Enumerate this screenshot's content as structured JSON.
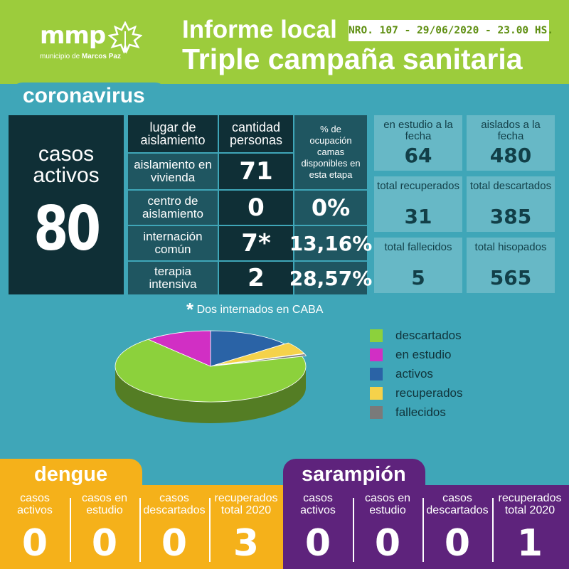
{
  "header": {
    "logo_mark": "mmp",
    "logo_sub_prefix": "municipio de ",
    "logo_sub_name": "Marcos Paz",
    "title_line1": "Informe local",
    "report_badge": "NRO. 107 - 29/06/2020 - 23.00 HS.",
    "title_line2": "Triple campaña sanitaria"
  },
  "coronavirus": {
    "title": "coronavirus",
    "active_label_1": "casos",
    "active_label_2": "activos",
    "active_value": "80",
    "table": {
      "col_place": "lugar de aislamiento",
      "col_count": "cantidad personas",
      "col_occupancy": "% de ocupación camas disponibles en esta etapa",
      "rows": [
        {
          "place": "aislamiento en vivienda",
          "count": "71",
          "occupancy": ""
        },
        {
          "place": "centro de aislamiento",
          "count": "0",
          "occupancy": "0%"
        },
        {
          "place": "internación común",
          "count": "7*",
          "occupancy": "13,16%"
        },
        {
          "place": "terapia intensiva",
          "count": "2",
          "occupancy": "28,57%"
        }
      ]
    },
    "stats": [
      {
        "label": "en estudio a la fecha",
        "value": "64"
      },
      {
        "label": "aislados a la fecha",
        "value": "480"
      },
      {
        "label": "total recuperados",
        "value": "31"
      },
      {
        "label": "total descartados",
        "value": "385"
      },
      {
        "label": "total fallecidos",
        "value": "5"
      },
      {
        "label": "total hisopados",
        "value": "565"
      }
    ],
    "note_star": "*",
    "note_text": "Dos internados en CABA"
  },
  "chart_data": {
    "type": "pie",
    "categories": [
      "descartados",
      "en estudio",
      "activos",
      "recuperados",
      "fallecidos"
    ],
    "values": [
      385,
      64,
      80,
      31,
      5
    ],
    "colors": [
      "#8cd13c",
      "#d12fc4",
      "#2a63a6",
      "#f5d24a",
      "#7a7a7a"
    ],
    "legend_position": "right"
  },
  "dengue": {
    "title": "dengue",
    "cols": [
      {
        "label_1": "casos",
        "label_2": "activos",
        "value": "0"
      },
      {
        "label_1": "casos en",
        "label_2": "estudio",
        "value": "0"
      },
      {
        "label_1": "casos",
        "label_2": "descartados",
        "value": "0"
      },
      {
        "label_1": "recuperados",
        "label_2": "total 2020",
        "value": "3"
      }
    ]
  },
  "sarampion": {
    "title": "sarampión",
    "cols": [
      {
        "label_1": "casos",
        "label_2": "activos",
        "value": "0"
      },
      {
        "label_1": "casos en",
        "label_2": "estudio",
        "value": "0"
      },
      {
        "label_1": "casos",
        "label_2": "descartados",
        "value": "0"
      },
      {
        "label_1": "recuperados",
        "label_2": "total 2020",
        "value": "1"
      }
    ]
  },
  "colors": {
    "header_green": "#9ccc3c",
    "teal": "#3fa6b8",
    "dark": "#0f2f36",
    "dengue_orange": "#f5b11a",
    "sarampion_purple": "#5e237c"
  }
}
